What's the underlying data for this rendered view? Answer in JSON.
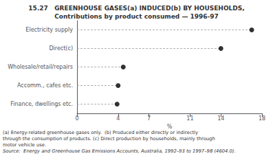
{
  "chart_data": {
    "type": "dot",
    "orientation": "horizontal",
    "title": "15.27   GREENHOUSE GASES(a) INDUCED(b) BY HOUSEHOLDS,",
    "subtitle": "Contributions by product consumed — 1996-97",
    "categories": [
      "Electricity supply",
      "Direct(c)",
      "Wholesale/retail/repairs",
      "Accomm., cafes etc.",
      "Finance, dwellings etc."
    ],
    "values": [
      17.0,
      14.0,
      4.5,
      4.0,
      3.9
    ],
    "xlabel": "%",
    "xlim": [
      0,
      18
    ],
    "xticks": [
      0,
      4,
      7,
      11,
      14,
      18
    ],
    "color": "#000000",
    "marker": "circle",
    "line_style": "dashed",
    "grid": false,
    "annotations": [
      "(a) Energy-related greenhouse gases only.  (b) Produced either directly or indirectly",
      "through the consumption of products. (c) Direct production by households, mainly through",
      "motor vehicle use.",
      "Source:  Energy and Greenhouse Gas Emissions Accounts, Australia, 1992–93 to 1997–98 (4604.0)."
    ]
  }
}
